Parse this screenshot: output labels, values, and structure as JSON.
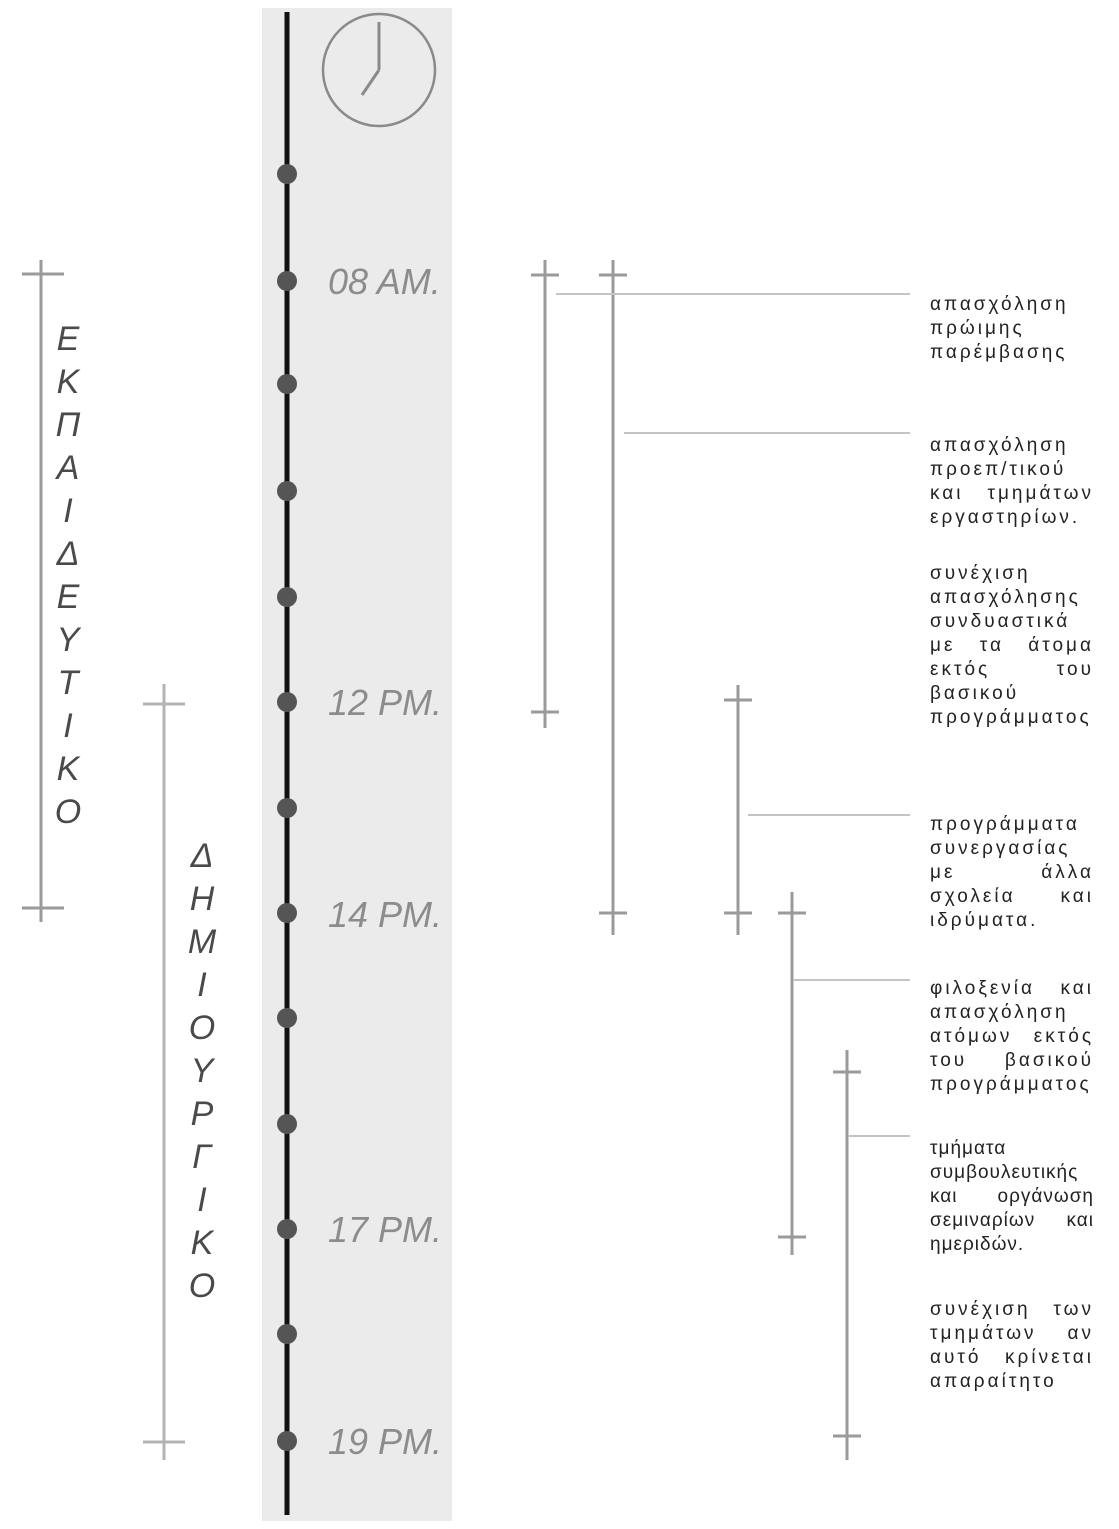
{
  "icons": {
    "clock": "clock-icon"
  },
  "timeline": {
    "labels": [
      {
        "id": "t08",
        "text": "08 AM."
      },
      {
        "id": "t12",
        "text": "12 PM."
      },
      {
        "id": "t14",
        "text": "14 PM."
      },
      {
        "id": "t17",
        "text": "17 PM."
      },
      {
        "id": "t19",
        "text": "19 PM."
      }
    ]
  },
  "levels": {
    "preschool": {
      "letters": [
        "Ε",
        "Κ",
        "Π",
        "Α",
        "Ι",
        "Δ",
        "Ε",
        "Υ",
        "Τ",
        "Ι",
        "Κ",
        "Ο"
      ]
    },
    "primary": {
      "letters": [
        "Δ",
        "Η",
        "Μ",
        "Ι",
        "Ο",
        "Υ",
        "Ρ",
        "Γ",
        "Ι",
        "Κ",
        "Ο"
      ]
    }
  },
  "notes": [
    "απασχόληση πρώιμης παρέμβασης",
    "απασχόληση προεπ/τικού και τμημάτων εργαστηρίων.",
    "συνέχιση απασχόλησης συνδυαστικά με τα άτομα εκτός του βασικού προγράμματος",
    "προγράμματα συνεργασίας με άλλα σχολεία και ιδρύματα.",
    "φιλοξενία και απασχόληση ατόμων εκτός του βασικού προγράμματος",
    "τμήματα συμβουλευτικής και οργάνωση σεμιναρίων και ημεριδών.",
    "συνέχιση των τμημάτων αν αυτό κρίνεται απαραίτητο"
  ],
  "colors": {
    "band": "#ebebeb",
    "axis": "#111111",
    "dot": "#555555",
    "bar": "#9a9a9a",
    "leader": "#c4c4c4",
    "timeText": "#8c8c8c"
  }
}
